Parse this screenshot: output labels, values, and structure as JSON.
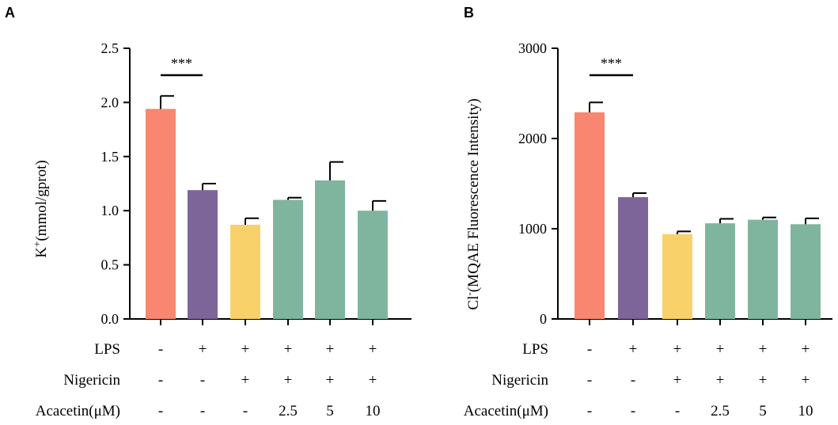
{
  "chart_data": [
    {
      "type": "bar",
      "panel_label": "A",
      "title": "",
      "ylabel_main": "K",
      "ylabel_sup": "+",
      "ylabel_rest": "(mmol/gprot)",
      "ylim": [
        0,
        2.5
      ],
      "yticks": [
        "0.0",
        "0.5",
        "1.0",
        "1.5",
        "2.0",
        "2.5"
      ],
      "ytick_values": [
        0,
        0.5,
        1.0,
        1.5,
        2.0,
        2.5
      ],
      "values": [
        1.94,
        1.19,
        0.87,
        1.1,
        1.28,
        1.0
      ],
      "errors": [
        0.12,
        0.06,
        0.06,
        0.02,
        0.17,
        0.09
      ],
      "colors": [
        "#f98670",
        "#7e6599",
        "#f9d16b",
        "#7fb59f",
        "#7fb59f",
        "#7fb59f"
      ],
      "significance": {
        "text": "***",
        "from": 0,
        "to": 1
      }
    },
    {
      "type": "bar",
      "panel_label": "B",
      "title": "",
      "ylabel_main": "Cl",
      "ylabel_sup": "-",
      "ylabel_rest": "(MQAE Fluorescence Intensity)",
      "ylim": [
        0,
        3000
      ],
      "yticks": [
        "0",
        "1000",
        "2000",
        "3000"
      ],
      "ytick_values": [
        0,
        1000,
        2000,
        3000
      ],
      "values": [
        2290,
        1350,
        940,
        1060,
        1100,
        1050
      ],
      "errors": [
        110,
        45,
        30,
        50,
        25,
        65
      ],
      "colors": [
        "#f98670",
        "#7e6599",
        "#f9d16b",
        "#7fb59f",
        "#7fb59f",
        "#7fb59f"
      ],
      "significance": {
        "text": "***",
        "from": 0,
        "to": 1
      }
    }
  ],
  "treatment_table": {
    "rows": [
      {
        "label": "LPS",
        "cells": [
          "-",
          "+",
          "+",
          "+",
          "+",
          "+"
        ]
      },
      {
        "label": "Nigericin",
        "cells": [
          "-",
          "-",
          "+",
          "+",
          "+",
          "+"
        ]
      },
      {
        "label": "Acacetin(μM)",
        "cells": [
          "-",
          "-",
          "-",
          "2.5",
          "5",
          "10"
        ]
      }
    ]
  }
}
